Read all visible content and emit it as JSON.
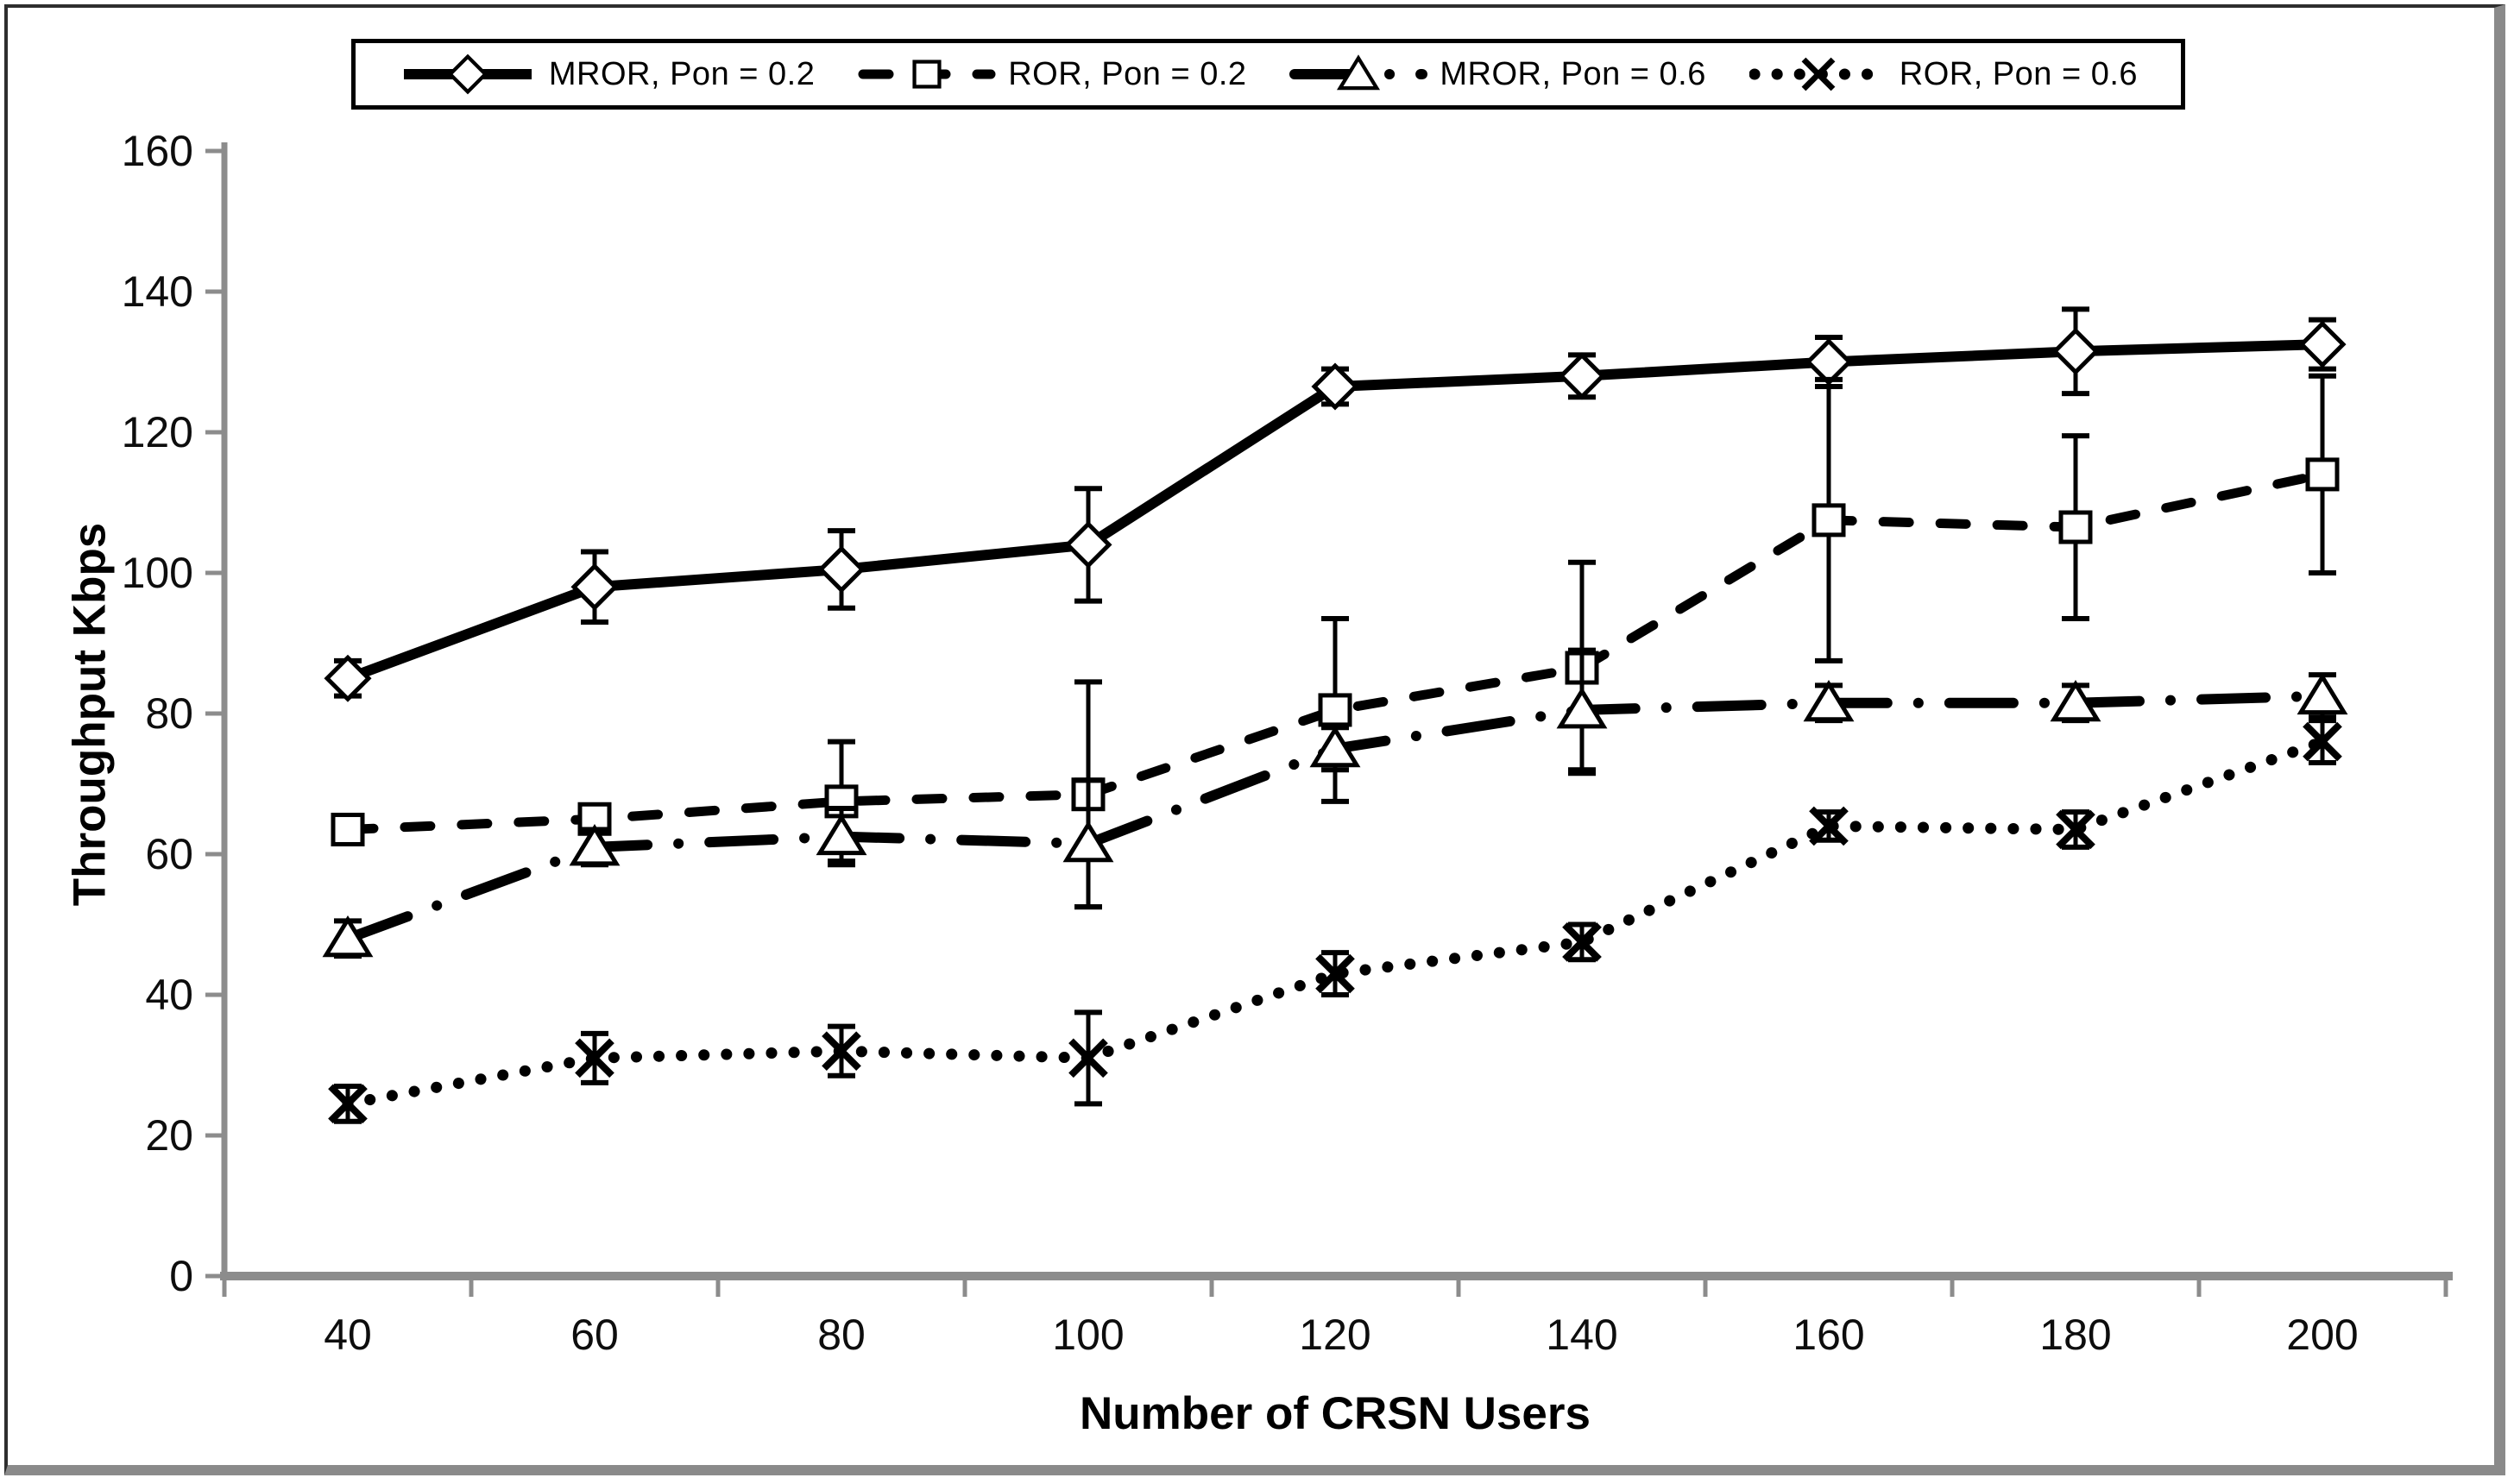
{
  "figure": {
    "background": "#ffffff",
    "frame_color_dark": "#2e2e2e",
    "frame_color_gray": "#8a8a8a"
  },
  "legend": {
    "position": "top",
    "border_color": "#000000",
    "entries": [
      {
        "label": "MROR, Pon = 0.2",
        "marker": "diamond",
        "line_style": "solid"
      },
      {
        "label": "ROR, Pon = 0.2",
        "marker": "square",
        "line_style": "dashed"
      },
      {
        "label": "MROR, Pon = 0.6",
        "marker": "triangle",
        "line_style": "dash-dot"
      },
      {
        "label": "ROR, Pon = 0.6",
        "marker": "x",
        "line_style": "dotted"
      }
    ]
  },
  "chart_data": {
    "type": "line",
    "title": "",
    "xlabel": "Number of CRSN Users",
    "ylabel": "Throughput Kbps",
    "x": [
      40,
      60,
      80,
      100,
      120,
      140,
      160,
      180,
      200
    ],
    "ylim": [
      0,
      160
    ],
    "yticks": [
      0,
      20,
      40,
      60,
      80,
      100,
      120,
      140,
      160
    ],
    "grid": false,
    "legend_position": "top",
    "axis_color": "#8c8c8c",
    "line_color": "#000000",
    "marker_fill": "#ffffff",
    "error_bars": true,
    "series": [
      {
        "name": "MROR, Pon = 0.2",
        "marker": "diamond",
        "line_style": "solid",
        "values": [
          85,
          98,
          100.5,
          104,
          126.5,
          128,
          130,
          131.5,
          132.5
        ],
        "errors": [
          2.5,
          5,
          5.5,
          8,
          2.5,
          3,
          3.5,
          6,
          3.5
        ]
      },
      {
        "name": "ROR, Pon = 0.2",
        "marker": "square",
        "line_style": "dashed",
        "values": [
          63.5,
          65,
          67.5,
          68.5,
          80.5,
          86.5,
          107.5,
          106.5,
          114
        ],
        "errors": [
          1.5,
          1.5,
          8.5,
          16,
          13,
          15,
          20,
          13,
          14
        ]
      },
      {
        "name": "MROR, Pon = 0.6",
        "marker": "triangle",
        "line_style": "dash-dot",
        "values": [
          48,
          61,
          62.5,
          61.5,
          75,
          80.5,
          81.5,
          81.5,
          82.5
        ],
        "errors": [
          2.5,
          2.5,
          4,
          9,
          3,
          8.5,
          2.5,
          2.5,
          3
        ]
      },
      {
        "name": "ROR, Pon = 0.6",
        "marker": "x",
        "line_style": "dotted",
        "values": [
          24.5,
          31,
          32,
          31,
          43,
          47.5,
          64,
          63.5,
          76
        ],
        "errors": [
          2.5,
          3.5,
          3.5,
          6.5,
          3,
          2.5,
          2,
          2.5,
          3
        ]
      }
    ]
  }
}
